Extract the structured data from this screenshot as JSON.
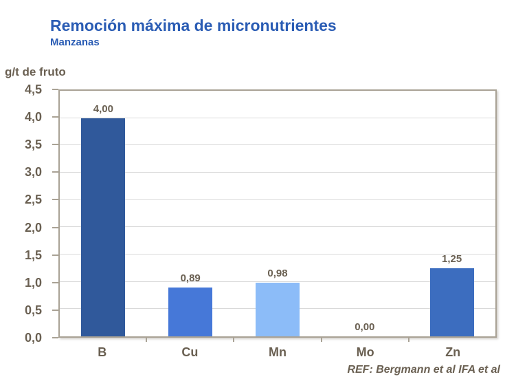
{
  "slide": {
    "title": "Remoción máxima de micronutrientes",
    "subtitle": "Manzanas",
    "unit_label": "g/t de fruto",
    "reference": "REF: Bergmann et al IFA et al"
  },
  "colors": {
    "title_blue": "#2A5CB4",
    "axis_text": "#6A6052",
    "plot_border": "#A9A295",
    "gridline": "#D9D9D9"
  },
  "chart_data": {
    "type": "bar",
    "title": "Remoción máxima de micronutrientes",
    "subtitle": "Manzanas",
    "ylabel": "g/t de fruto",
    "xlabel": "",
    "categories": [
      "B",
      "Cu",
      "Mn",
      "Mo",
      "Zn"
    ],
    "values": [
      4.0,
      0.89,
      0.98,
      0.0,
      1.25
    ],
    "value_labels": [
      "4,00",
      "0,89",
      "0,98",
      "0,00",
      "1,25"
    ],
    "bar_colors": [
      "#30599B",
      "#4678D8",
      "#8CBCF8",
      "#4678D8",
      "#3C6DBF"
    ],
    "ylim": [
      0,
      4.5
    ],
    "ytick_step": 0.5,
    "ytick_labels": [
      "0,0",
      "0,5",
      "1,0",
      "1,5",
      "2,0",
      "2,5",
      "3,0",
      "3,5",
      "4,0",
      "4,5"
    ],
    "grid": true,
    "legend": false,
    "annotation": "REF: Bergmann et al IFA et al"
  }
}
